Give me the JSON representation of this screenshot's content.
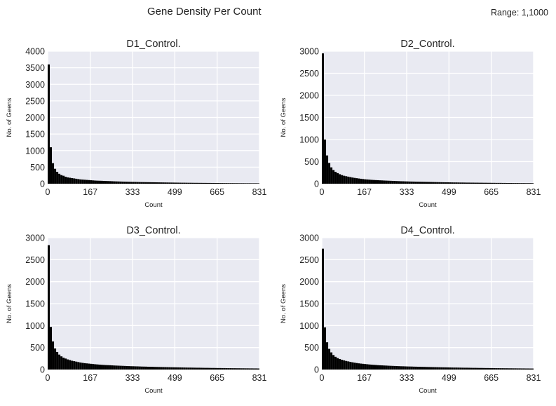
{
  "title": "Gene Density Per Count",
  "range_note": "Range: 1,1000",
  "chart_data": [
    {
      "type": "bar",
      "title": "D1_Control.",
      "xlabel": "Count",
      "ylabel": "No. of Geens",
      "xlim": [
        0,
        831
      ],
      "ylim": [
        0,
        4000
      ],
      "xticks": [
        "0",
        "167",
        "333",
        "499",
        "665",
        "831"
      ],
      "yticks": [
        "0",
        "500",
        "1000",
        "1500",
        "2000",
        "2500",
        "3000",
        "3500",
        "4000"
      ],
      "bin_width": 8.31,
      "values": [
        3600,
        1100,
        620,
        450,
        360,
        300,
        260,
        240,
        210,
        190,
        180,
        170,
        160,
        150,
        140,
        130,
        125,
        120,
        115,
        110,
        105,
        100,
        95,
        92,
        90,
        88,
        85,
        82,
        80,
        78,
        75,
        72,
        70,
        68,
        66,
        64,
        62,
        60,
        58,
        56,
        55,
        54,
        52,
        50,
        49,
        48,
        47,
        46,
        45,
        44,
        43,
        42,
        41,
        40,
        39,
        38,
        37,
        36,
        35,
        34,
        33,
        32,
        31,
        30,
        30,
        29,
        28,
        28,
        27,
        26,
        26,
        25,
        25,
        24,
        24,
        23,
        23,
        22,
        22,
        21,
        21,
        20,
        20,
        19,
        19,
        18,
        18,
        18,
        17,
        17,
        16,
        16,
        16,
        15,
        15,
        15,
        14,
        14,
        14,
        13
      ]
    },
    {
      "type": "bar",
      "title": "D2_Control.",
      "xlabel": "Count",
      "ylabel": "No. of Geens",
      "xlim": [
        0,
        831
      ],
      "ylim": [
        0,
        3000
      ],
      "xticks": [
        "0",
        "167",
        "333",
        "499",
        "665",
        "831"
      ],
      "yticks": [
        "0",
        "500",
        "1000",
        "1500",
        "2000",
        "2500",
        "3000"
      ],
      "bin_width": 8.31,
      "values": [
        2950,
        1000,
        640,
        470,
        370,
        310,
        270,
        240,
        215,
        195,
        180,
        170,
        160,
        150,
        140,
        132,
        125,
        118,
        112,
        106,
        100,
        96,
        92,
        88,
        85,
        82,
        80,
        77,
        75,
        72,
        70,
        68,
        66,
        64,
        62,
        60,
        58,
        56,
        55,
        53,
        52,
        50,
        49,
        48,
        46,
        45,
        44,
        43,
        42,
        41,
        40,
        39,
        38,
        37,
        36,
        35,
        34,
        33,
        32,
        32,
        31,
        30,
        29,
        29,
        28,
        27,
        27,
        26,
        25,
        25,
        24,
        24,
        23,
        23,
        22,
        22,
        21,
        21,
        20,
        20,
        19,
        19,
        18,
        18,
        18,
        17,
        17,
        16,
        16,
        16,
        15,
        15,
        15,
        14,
        14,
        14,
        13,
        13,
        13,
        12
      ]
    },
    {
      "type": "bar",
      "title": "D3_Control.",
      "xlabel": "Count",
      "ylabel": "No. of Geens",
      "xlim": [
        0,
        831
      ],
      "ylim": [
        0,
        3000
      ],
      "xticks": [
        "0",
        "167",
        "333",
        "499",
        "665",
        "831"
      ],
      "yticks": [
        "0",
        "500",
        "1000",
        "1500",
        "2000",
        "2500",
        "3000"
      ],
      "bin_width": 8.31,
      "values": [
        2830,
        970,
        640,
        480,
        400,
        340,
        300,
        270,
        250,
        230,
        215,
        200,
        190,
        180,
        170,
        160,
        152,
        145,
        140,
        135,
        130,
        125,
        120,
        116,
        112,
        108,
        105,
        102,
        100,
        98,
        95,
        92,
        90,
        88,
        86,
        84,
        82,
        80,
        78,
        76,
        75,
        73,
        72,
        70,
        68,
        67,
        66,
        64,
        63,
        62,
        60,
        59,
        58,
        57,
        56,
        55,
        54,
        53,
        52,
        51,
        50,
        49,
        48,
        47,
        46,
        45,
        44,
        44,
        43,
        42,
        41,
        41,
        40,
        39,
        38,
        38,
        37,
        36,
        36,
        35,
        34,
        34,
        33,
        33,
        32,
        31,
        31,
        30,
        30,
        29,
        29,
        28,
        28,
        27,
        27,
        26,
        26,
        25,
        25,
        24
      ]
    },
    {
      "type": "bar",
      "title": "D4_Control.",
      "xlabel": "Count",
      "ylabel": "No. of Geens",
      "xlim": [
        0,
        831
      ],
      "ylim": [
        0,
        3000
      ],
      "xticks": [
        "0",
        "167",
        "333",
        "499",
        "665",
        "831"
      ],
      "yticks": [
        "0",
        "500",
        "1000",
        "1500",
        "2000",
        "2500",
        "3000"
      ],
      "bin_width": 8.31,
      "values": [
        2750,
        960,
        620,
        470,
        390,
        330,
        290,
        260,
        240,
        222,
        208,
        195,
        185,
        175,
        165,
        156,
        148,
        141,
        135,
        130,
        125,
        120,
        115,
        111,
        107,
        104,
        100,
        97,
        95,
        92,
        90,
        87,
        85,
        83,
        81,
        79,
        77,
        75,
        74,
        72,
        70,
        69,
        68,
        66,
        65,
        63,
        62,
        61,
        60,
        58,
        57,
        56,
        55,
        54,
        53,
        52,
        51,
        50,
        49,
        48,
        47,
        46,
        45,
        45,
        44,
        43,
        42,
        41,
        41,
        40,
        39,
        38,
        38,
        37,
        36,
        36,
        35,
        34,
        34,
        33,
        33,
        32,
        31,
        31,
        30,
        30,
        29,
        29,
        28,
        28,
        27,
        27,
        26,
        26,
        25,
        25,
        24,
        24,
        23,
        23
      ]
    }
  ]
}
